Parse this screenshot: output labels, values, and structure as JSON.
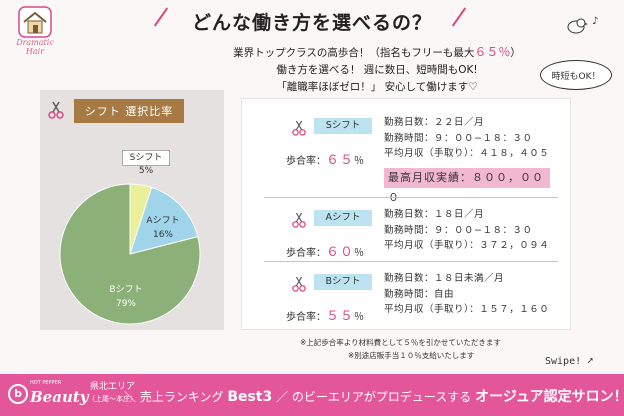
{
  "logo": {
    "text": "Dramatic Hair"
  },
  "title": "どんな働き方を選べるの？",
  "intro": {
    "line1_pre": "業界トップクラスの高歩合！（指名もフリーも最大",
    "line1_pct": "６５％",
    "line1_post": "）",
    "line2": "働き方を選べる！ 週に数日、短時間もOK!",
    "line3": "「離職率ほぼゼロ！」 安心して働けます♡"
  },
  "bubble": "時短もOK！",
  "shift_ratio": {
    "tag": "シフト 選択比率",
    "s_name": "Sシフト",
    "s_pct": "5%",
    "a_name": "Aシフト",
    "a_pct": "16%",
    "b_name": "Bシフト",
    "b_pct": "79%"
  },
  "chart_data": {
    "type": "pie",
    "categories": [
      "Sシフト",
      "Aシフト",
      "Bシフト"
    ],
    "values": [
      5,
      16,
      79
    ],
    "colors": [
      "#ecef9a",
      "#9fd4ea",
      "#8bb078"
    ]
  },
  "shifts": {
    "s": {
      "tag": "Sシフト",
      "rate_label": "歩合率：",
      "rate": "６５",
      "days": "勤務日数：２２日／月",
      "hours": "勤務時間：９：００−１８：３０",
      "income": "平均月収（手取り）：４１８，４０５",
      "best": "最高月収実績：８００，０００"
    },
    "a": {
      "tag": "Aシフト",
      "rate_label": "歩合率：",
      "rate": "６０",
      "days": "勤務日数：１８日／月",
      "hours": "勤務時間：９：００−１８：３０",
      "income": "平均月収（手取り）：３７２，０９４"
    },
    "b": {
      "tag": "Bシフト",
      "rate_label": "歩合率：",
      "rate": "５５",
      "days": "勤務日数：１８日未満／月",
      "hours": "勤務時間：自由",
      "income": "平均月収（手取り）：１５７，１６０"
    },
    "pct_sign": "％"
  },
  "notes": {
    "line1": "※上記歩合率より材料費として５％を引かせていただきます",
    "line2": "※別途店販手当１０％支給いたします"
  },
  "swipe": "Swipe!",
  "footer": {
    "hot": "HOT PEPPER",
    "brand": "Beauty",
    "area": "県北エリア",
    "area_sub": "（上尾〜本庄）",
    "rank": "売上ランキング",
    "best3": "Best3",
    "mid": "のビーエリアがプロデュースする",
    "end": "オージュア認定サロン！"
  },
  "colors": {
    "pink": "#d64a85",
    "footer": "#e4569a",
    "tag_brown": "#a77a44",
    "tag_blue": "#bce3ef"
  }
}
